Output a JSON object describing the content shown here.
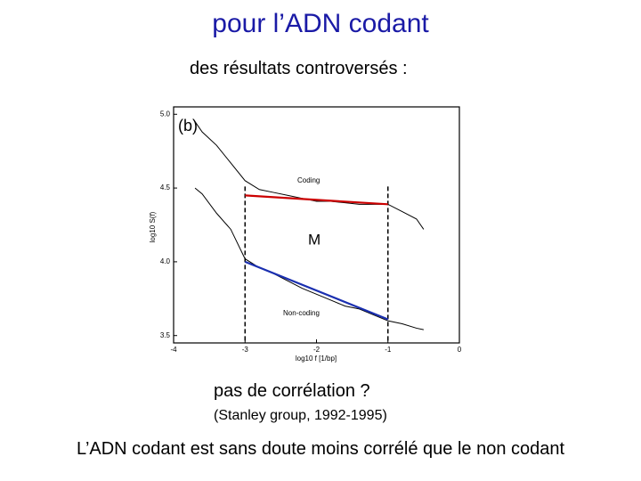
{
  "title": "pour l’ADN codant",
  "subtitle": "des résultats controversés :",
  "note": "pas de corrélation ?",
  "source": "(Stanley group, 1992-1995)",
  "conclusion": "L’ADN codant est sans doute moins corrélé que le non codant",
  "chart_data": {
    "type": "line",
    "panel_label": "(b)",
    "marker_label": "M",
    "x_label": "log10 f [1/bp]",
    "y_label": "log10 S(f)",
    "xlim": [
      -4,
      0
    ],
    "ylim": [
      3.45,
      5.05
    ],
    "xticks": [
      -4,
      -3,
      -2,
      -1,
      0
    ],
    "yticks": [
      {
        "value": 5,
        "label": "5.0"
      },
      {
        "value": 4.5,
        "label": "4.5"
      },
      {
        "value": 4,
        "label": "4.0"
      },
      {
        "value": 3.5,
        "label": "3.5"
      }
    ],
    "vlines": [
      -3,
      -1
    ],
    "series": [
      {
        "name": "Coding",
        "color": "#000000",
        "x": [
          -3.7,
          -3.6,
          -3.4,
          -3.2,
          -3.0,
          -2.8,
          -2.6,
          -2.4,
          -2.2,
          -2.0,
          -1.8,
          -1.6,
          -1.4,
          -1.2,
          -1.0,
          -0.8,
          -0.6,
          -0.5
        ],
        "values": [
          4.95,
          4.88,
          4.79,
          4.67,
          4.55,
          4.49,
          4.47,
          4.45,
          4.43,
          4.41,
          4.41,
          4.4,
          4.39,
          4.39,
          4.39,
          4.34,
          4.29,
          4.22
        ]
      },
      {
        "name": "Non-coding",
        "color": "#000000",
        "x": [
          -3.7,
          -3.6,
          -3.4,
          -3.2,
          -3.0,
          -2.8,
          -2.6,
          -2.4,
          -2.2,
          -2.0,
          -1.8,
          -1.6,
          -1.4,
          -1.2,
          -1.0,
          -0.8,
          -0.6,
          -0.5
        ],
        "values": [
          4.5,
          4.46,
          4.33,
          4.22,
          4.02,
          3.96,
          3.92,
          3.87,
          3.82,
          3.78,
          3.74,
          3.7,
          3.68,
          3.64,
          3.6,
          3.58,
          3.55,
          3.54
        ]
      }
    ],
    "fits": [
      {
        "color": "#cc0000",
        "x": [
          -3,
          -1
        ],
        "values": [
          4.45,
          4.39
        ]
      },
      {
        "color": "#1a2fb0",
        "x": [
          -3,
          -1
        ],
        "values": [
          4.0,
          3.61
        ]
      }
    ]
  }
}
